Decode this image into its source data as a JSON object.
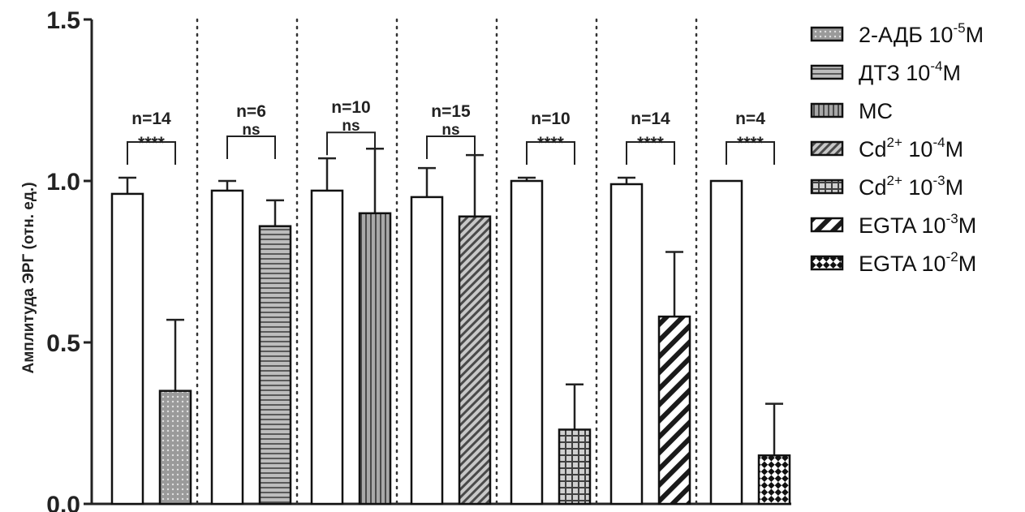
{
  "chart_data": {
    "type": "bar",
    "ylabel": "Амплитуда ЭРГ (отн. ед.)",
    "ylim": [
      0,
      1.5
    ],
    "yticks": [
      "0.0",
      "0.5",
      "1.0",
      "1.5"
    ],
    "legend_position": "right",
    "groups": [
      {
        "n_label": "n=14",
        "sig": "****",
        "control": {
          "value": 0.96,
          "err": 0.05
        },
        "treatment": {
          "value": 0.35,
          "err": 0.22
        },
        "pattern": "dots"
      },
      {
        "n_label": "n=6",
        "sig": "ns",
        "control": {
          "value": 0.97,
          "err": 0.03
        },
        "treatment": {
          "value": 0.86,
          "err": 0.08
        },
        "pattern": "hlines"
      },
      {
        "n_label": "n=10",
        "sig": "ns",
        "control": {
          "value": 0.97,
          "err": 0.1
        },
        "treatment": {
          "value": 0.9,
          "err": 0.2
        },
        "pattern": "vlines"
      },
      {
        "n_label": "n=15",
        "sig": "ns",
        "control": {
          "value": 0.95,
          "err": 0.09
        },
        "treatment": {
          "value": 0.89,
          "err": 0.19
        },
        "pattern": "diag"
      },
      {
        "n_label": "n=10",
        "sig": "****",
        "control": {
          "value": 1.0,
          "err": 0.01
        },
        "treatment": {
          "value": 0.23,
          "err": 0.14
        },
        "pattern": "grid"
      },
      {
        "n_label": "n=14",
        "sig": "****",
        "control": {
          "value": 0.99,
          "err": 0.02
        },
        "treatment": {
          "value": 0.58,
          "err": 0.2
        },
        "pattern": "bigdiag"
      },
      {
        "n_label": "n=4",
        "sig": "****",
        "control": {
          "value": 1.0,
          "err": 0.0
        },
        "treatment": {
          "value": 0.15,
          "err": 0.16
        },
        "pattern": "checker"
      }
    ],
    "legend": [
      {
        "base": "2-АДБ 10",
        "sup": "-5",
        "tail": "M",
        "pattern": "dots"
      },
      {
        "base": "ДТЗ 10",
        "sup": "-4",
        "tail": "M",
        "pattern": "hlines"
      },
      {
        "base": "MC",
        "sup": "",
        "tail": "",
        "pattern": "vlines"
      },
      {
        "base": "Cd",
        "sup": "2+",
        "tail": " 10",
        "sup2": "-4",
        "tail2": "M",
        "pattern": "diag"
      },
      {
        "base": "Cd",
        "sup": "2+",
        "tail": " 10",
        "sup2": "-3",
        "tail2": "M",
        "pattern": "grid"
      },
      {
        "base": "EGTA 10",
        "sup": "-3",
        "tail": "M",
        "pattern": "bigdiag"
      },
      {
        "base": "EGTA 10",
        "sup": "-2",
        "tail": "M",
        "pattern": "checker"
      }
    ]
  }
}
